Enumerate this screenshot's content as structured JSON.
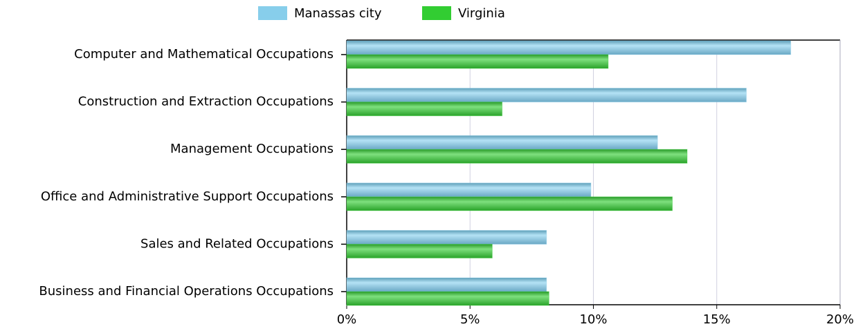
{
  "chart_data": {
    "type": "bar",
    "orientation": "horizontal",
    "categories": [
      "Computer and Mathematical Occupations",
      "Construction and Extraction Occupations",
      "Management Occupations",
      "Office and Administrative Support Occupations",
      "Sales and Related Occupations",
      "Business and Financial Operations Occupations"
    ],
    "series": [
      {
        "name": "Manassas city",
        "color": "#87ceeb",
        "values": [
          18.0,
          16.2,
          12.6,
          9.9,
          8.1,
          8.1
        ]
      },
      {
        "name": "Virginia",
        "color": "#32cd32",
        "values": [
          10.6,
          6.3,
          13.8,
          13.2,
          5.9,
          8.2
        ]
      }
    ],
    "xlim": [
      0,
      20
    ],
    "xticks": [
      {
        "value": 0,
        "label": "0%"
      },
      {
        "value": 5,
        "label": "5%"
      },
      {
        "value": 10,
        "label": "10%"
      },
      {
        "value": 15,
        "label": "15%"
      },
      {
        "value": 20,
        "label": "20%"
      }
    ],
    "grid": true,
    "legend": "top"
  }
}
